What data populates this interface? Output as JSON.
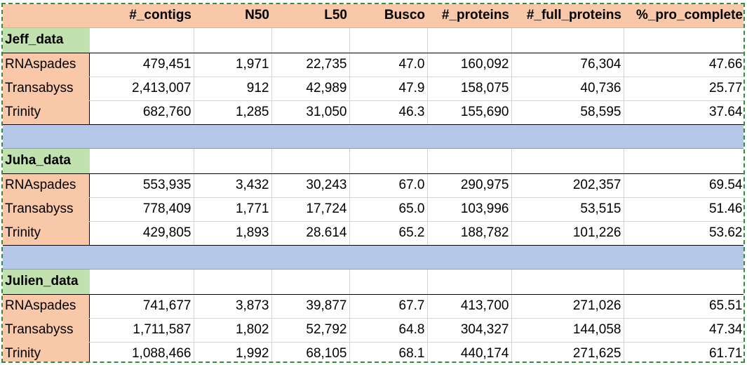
{
  "columns": [
    "",
    "#_contigs",
    "N50",
    "L50",
    "Busco",
    "#_proteins",
    "#_full_proteins",
    "%_pro_complete"
  ],
  "groups": [
    {
      "name": "Jeff_data",
      "rows": [
        {
          "label": "RNAspades",
          "values": [
            "479,451",
            "1,971",
            "22,735",
            "47.0",
            "160,092",
            "76,304",
            "47.66"
          ]
        },
        {
          "label": "Transabyss",
          "values": [
            "2,413,007",
            "912",
            "42,989",
            "47.9",
            "158,075",
            "40,736",
            "25.77"
          ]
        },
        {
          "label": "Trinity",
          "values": [
            "682,760",
            "1,285",
            "31,050",
            "46.3",
            "155,690",
            "58,595",
            "37.64"
          ]
        }
      ]
    },
    {
      "name": "Juha_data",
      "rows": [
        {
          "label": "RNAspades",
          "values": [
            "553,935",
            "3,432",
            "30,243",
            "67.0",
            "290,975",
            "202,357",
            "69.54"
          ]
        },
        {
          "label": "Transabyss",
          "values": [
            "778,409",
            "1,771",
            "17,724",
            "65.0",
            "103,996",
            "53,515",
            "51.46"
          ]
        },
        {
          "label": "Trinity",
          "values": [
            "429,805",
            "1,893",
            "28.614",
            "65.2",
            "188,782",
            "101,226",
            "53.62"
          ]
        }
      ]
    },
    {
      "name": "Julien_data",
      "rows": [
        {
          "label": "RNAspades",
          "values": [
            "741,677",
            "3,873",
            "39,877",
            "67.7",
            "413,700",
            "271,026",
            "65.51"
          ]
        },
        {
          "label": "Transabyss",
          "values": [
            "1,711,587",
            "1,802",
            "52,792",
            "64.8",
            "304,327",
            "144,058",
            "47.34"
          ]
        },
        {
          "label": "Trinity",
          "values": [
            "1,088,466",
            "1,992",
            "68,105",
            "68.1",
            "440,174",
            "271,625",
            "61.71"
          ]
        }
      ]
    }
  ],
  "colors": {
    "header_fill": "#f8c8a8",
    "group_label_fill": "#c1e2ae",
    "separator_fill": "#b6c8ea",
    "border_dashed": "#2f8f3f"
  }
}
